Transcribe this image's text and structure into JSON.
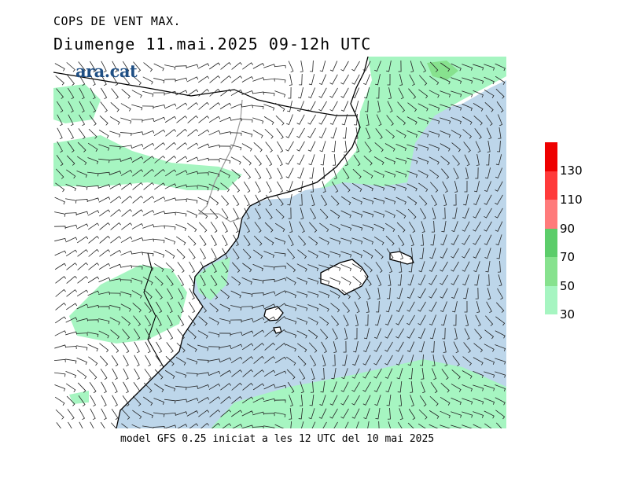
{
  "header": {
    "line1": "COPS DE VENT MAX.",
    "line2": "Diumenge  11.mai.2025 09-12h UTC"
  },
  "logo": {
    "text": "ara.cat"
  },
  "footer": {
    "text": "model GFS 0.25 iniciat a les 12 UTC del 10 mai 2025"
  },
  "legend": {
    "bands": [
      {
        "from": 30,
        "to": 50,
        "color": "#a6f5c1"
      },
      {
        "from": 50,
        "to": 70,
        "color": "#87e28e"
      },
      {
        "from": 70,
        "to": 90,
        "color": "#5ccd6a"
      },
      {
        "from": 90,
        "to": 110,
        "color": "#ff7b7b"
      },
      {
        "from": 110,
        "to": 130,
        "color": "#ff3a3a"
      },
      {
        "from": 130,
        "to": 150,
        "color": "#ee0000"
      }
    ],
    "labels": [
      "30",
      "50",
      "70",
      "90",
      "110",
      "130"
    ]
  },
  "map_colors": {
    "sea": "#bdd6ea",
    "wind_30_50": "#a6f5c1",
    "wind_50_70": "#87e28e",
    "land": "#ffffff"
  }
}
